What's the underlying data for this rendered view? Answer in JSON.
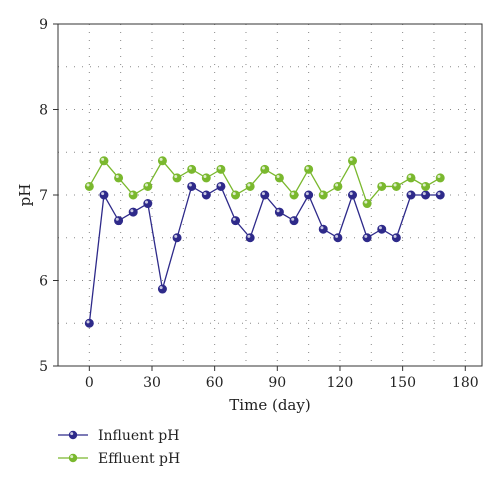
{
  "chart_data": {
    "type": "line",
    "xlabel": "Time (day)",
    "ylabel": "pH",
    "xlim": [
      -15,
      188
    ],
    "ylim": [
      5,
      9
    ],
    "xticks": [
      0,
      30,
      60,
      90,
      120,
      150,
      180
    ],
    "yticks": [
      5,
      6,
      7,
      8,
      9
    ],
    "grid": true,
    "legend_position": "bottom-left",
    "series": [
      {
        "name": "Influent pH",
        "color": "#2e2a8a",
        "x": [
          0,
          7,
          14,
          21,
          28,
          35,
          42,
          49,
          56,
          63,
          70,
          77,
          84,
          91,
          98,
          105,
          112,
          119,
          126,
          133,
          140,
          147,
          154,
          161,
          168
        ],
        "values": [
          5.5,
          7.0,
          6.7,
          6.8,
          6.9,
          5.9,
          6.5,
          7.1,
          7.0,
          7.1,
          6.7,
          6.5,
          7.0,
          6.8,
          6.7,
          7.0,
          6.6,
          6.5,
          7.0,
          6.5,
          6.6,
          6.5,
          7.0,
          7.0,
          7.0
        ]
      },
      {
        "name": "Effluent pH",
        "color": "#7ab82e",
        "x": [
          0,
          7,
          14,
          21,
          28,
          35,
          42,
          49,
          56,
          63,
          70,
          77,
          84,
          91,
          98,
          105,
          112,
          119,
          126,
          133,
          140,
          147,
          154,
          161,
          168
        ],
        "values": [
          7.1,
          7.4,
          7.2,
          7.0,
          7.1,
          7.4,
          7.2,
          7.3,
          7.2,
          7.3,
          7.0,
          7.1,
          7.3,
          7.2,
          7.0,
          7.3,
          7.0,
          7.1,
          7.4,
          6.9,
          7.1,
          7.1,
          7.2,
          7.1,
          7.2
        ]
      }
    ]
  }
}
